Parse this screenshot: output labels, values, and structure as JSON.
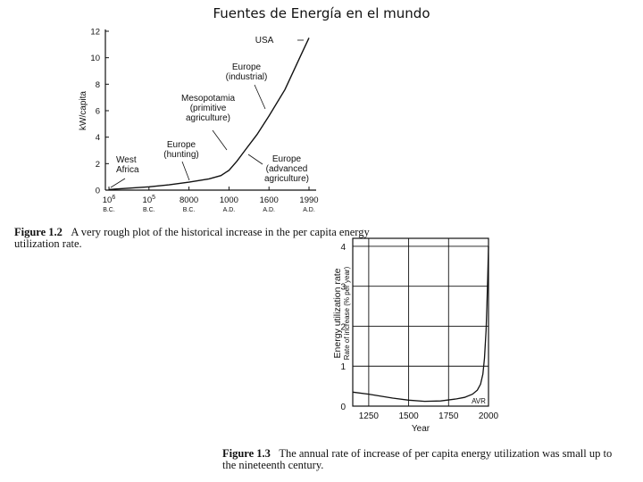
{
  "slide": {
    "title": "Fuentes de Energía en el mundo"
  },
  "figure1": {
    "caption_label": "Figure 1.2",
    "caption_text": "A very rough plot of the historical increase in the per capita energy utilization rate.",
    "annotations": {
      "usa": "USA",
      "europe_industrial": [
        "Europe",
        "(industrial)"
      ],
      "mesopotamia": [
        "Mesopotamia",
        "(primitive",
        "agriculture)"
      ],
      "europe_hunting": [
        "Europe",
        "(hunting)"
      ],
      "west_africa": [
        "West",
        "Africa"
      ],
      "europe_advanced": [
        "Europe",
        "(advanced",
        "agriculture)"
      ]
    }
  },
  "figure2": {
    "caption_label": "Figure 1.3",
    "caption_text": "The annual rate of increase of per capita energy utilization was small up to the nineteenth century.",
    "annotations": {
      "avr": "AVR"
    }
  },
  "chart_data": [
    {
      "type": "line",
      "title": "",
      "xlabel": "",
      "ylabel": "kW/capita",
      "ylim": [
        0,
        12
      ],
      "yticks": [
        "0",
        "2",
        "4",
        "6",
        "8",
        "10",
        "12"
      ],
      "xticks": [
        {
          "top": "10",
          "sup": "6",
          "bottom": "B.C."
        },
        {
          "top": "10",
          "sup": "5",
          "bottom": "B.C."
        },
        {
          "top": "8000",
          "sup": "",
          "bottom": "B.C."
        },
        {
          "top": "1000",
          "sup": "",
          "bottom": "A.D."
        },
        {
          "top": "1600",
          "sup": "",
          "bottom": "A.D."
        },
        {
          "top": "1990",
          "sup": "",
          "bottom": "A.D."
        }
      ],
      "x_positions": [
        0,
        1,
        2,
        3,
        4,
        5
      ],
      "x": [
        0,
        0.5,
        1,
        1.5,
        2,
        2.5,
        2.8,
        3.0,
        3.2,
        3.4,
        3.7,
        4.0,
        4.4,
        4.8,
        5.0
      ],
      "y": [
        0.05,
        0.15,
        0.25,
        0.4,
        0.6,
        0.85,
        1.1,
        1.5,
        2.2,
        3.0,
        4.2,
        5.6,
        7.6,
        10.2,
        11.5
      ],
      "grid": false
    },
    {
      "type": "line",
      "title": "",
      "xlabel": "Year",
      "ylabel": "Energy utilization rate",
      "ylabel2": "Rate of increase (% per year)",
      "xlim": [
        1150,
        2000
      ],
      "ylim": [
        0,
        4.2
      ],
      "xticks": [
        1250,
        1500,
        1750,
        2000
      ],
      "yticks": [
        0,
        1,
        2,
        3,
        4
      ],
      "x": [
        1150,
        1250,
        1400,
        1500,
        1600,
        1700,
        1800,
        1850,
        1900,
        1930,
        1950,
        1965,
        1975,
        1985,
        1990,
        1995,
        2000
      ],
      "y": [
        0.35,
        0.3,
        0.2,
        0.15,
        0.12,
        0.13,
        0.18,
        0.22,
        0.3,
        0.4,
        0.55,
        0.8,
        1.2,
        1.9,
        2.5,
        3.2,
        4.0
      ],
      "grid": true
    }
  ]
}
